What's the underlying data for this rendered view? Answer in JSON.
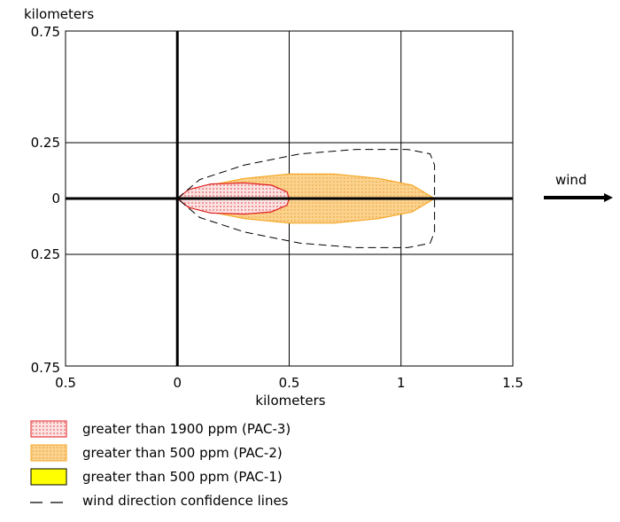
{
  "chart_data": {
    "type": "area",
    "title": "",
    "xlabel": "kilometers",
    "ylabel": "kilometers",
    "xlim": [
      -0.5,
      1.5
    ],
    "ylim": [
      -0.75,
      0.75
    ],
    "grid": true,
    "x_ticks": [
      {
        "value": -0.5,
        "label": "0.5"
      },
      {
        "value": 0,
        "label": "0"
      },
      {
        "value": 0.5,
        "label": "0.5"
      },
      {
        "value": 1,
        "label": "1"
      },
      {
        "value": 1.5,
        "label": "1.5"
      }
    ],
    "y_ticks": [
      {
        "value": 0.75,
        "label": "0.75"
      },
      {
        "value": 0.25,
        "label": "0.25"
      },
      {
        "value": 0,
        "label": "0"
      },
      {
        "value": -0.25,
        "label": "0.25"
      },
      {
        "value": -0.75,
        "label": "0.75"
      }
    ],
    "wind_label": "wind",
    "series": [
      {
        "name": "greater than 500 ppm (PAC-2)",
        "kind": "zone",
        "fill": "#fbd38e",
        "stroke": "#f5a623",
        "pattern": "dots",
        "outline": [
          [
            0,
            0
          ],
          [
            0.1,
            0.05
          ],
          [
            0.3,
            0.09
          ],
          [
            0.5,
            0.11
          ],
          [
            0.7,
            0.11
          ],
          [
            0.9,
            0.09
          ],
          [
            1.05,
            0.06
          ],
          [
            1.15,
            0
          ],
          [
            1.05,
            -0.06
          ],
          [
            0.9,
            -0.09
          ],
          [
            0.7,
            -0.11
          ],
          [
            0.5,
            -0.11
          ],
          [
            0.3,
            -0.09
          ],
          [
            0.1,
            -0.05
          ]
        ]
      },
      {
        "name": "greater than 1900 ppm (PAC-3)",
        "kind": "zone",
        "fill": "#fbe3e3",
        "stroke": "#e02020",
        "pattern": "dots",
        "outline": [
          [
            0,
            0
          ],
          [
            0.05,
            0.04
          ],
          [
            0.15,
            0.065
          ],
          [
            0.3,
            0.07
          ],
          [
            0.42,
            0.06
          ],
          [
            0.49,
            0.03
          ],
          [
            0.5,
            0
          ],
          [
            0.49,
            -0.03
          ],
          [
            0.42,
            -0.06
          ],
          [
            0.3,
            -0.07
          ],
          [
            0.15,
            -0.065
          ],
          [
            0.05,
            -0.04
          ]
        ]
      },
      {
        "name": "greater than 500 ppm (PAC-1)",
        "kind": "legend-only",
        "fill": "#ffff00",
        "stroke": "#000000"
      },
      {
        "name": "wind direction confidence lines",
        "kind": "dashed",
        "stroke": "#000000",
        "outline": [
          [
            0,
            0
          ],
          [
            0.1,
            0.085
          ],
          [
            0.3,
            0.15
          ],
          [
            0.55,
            0.2
          ],
          [
            0.8,
            0.22
          ],
          [
            1.03,
            0.22
          ],
          [
            1.13,
            0.2
          ],
          [
            1.15,
            0.15
          ],
          [
            1.15,
            0
          ],
          [
            1.15,
            -0.15
          ],
          [
            1.13,
            -0.2
          ],
          [
            1.03,
            -0.22
          ],
          [
            0.8,
            -0.22
          ],
          [
            0.55,
            -0.2
          ],
          [
            0.3,
            -0.15
          ],
          [
            0.1,
            -0.085
          ],
          [
            0,
            0
          ]
        ]
      }
    ]
  }
}
